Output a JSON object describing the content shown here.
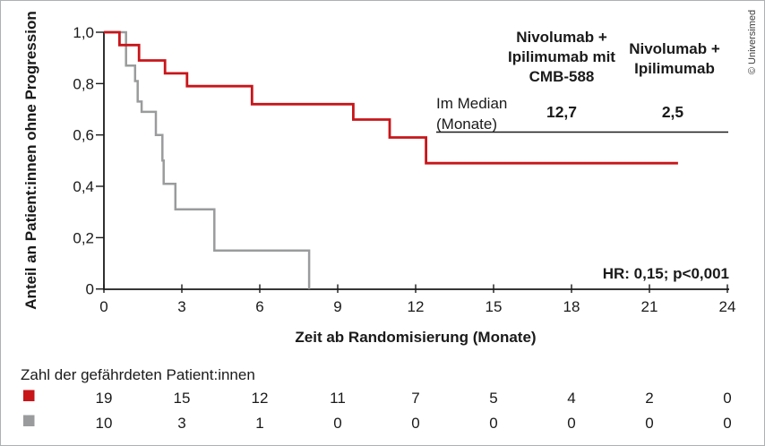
{
  "frame": {
    "copyright": "© Universimed"
  },
  "chart_data": {
    "type": "line",
    "subtype": "kaplan-meier-step",
    "title": "",
    "xlabel": "Zeit ab Randomisierung (Monate)",
    "ylabel": "Anteil an Patient:innen ohne Progression",
    "xlim": [
      0,
      24
    ],
    "ylim": [
      0,
      1.0
    ],
    "grid": false,
    "xticks": [
      0,
      3,
      6,
      9,
      12,
      15,
      18,
      21,
      24
    ],
    "ytick_values": [
      0,
      0.2,
      0.4,
      0.6,
      0.8,
      1.0
    ],
    "ytick_labels": [
      "0",
      "0,2",
      "0,4",
      "0,6",
      "0,8",
      "1,0"
    ],
    "median_header_lines": [
      "Im Median",
      "(Monate)"
    ],
    "hr_annotation": "HR: 0,15; p<0,001",
    "series": [
      {
        "name": "Nivolumab + Ipilimumab mit CMB-588",
        "label_lines": [
          "Nivolumab +",
          "Ipilimumab mit",
          "CMB-588"
        ],
        "color": "#c8151a",
        "median_label": "12,7",
        "step_x": [
          0,
          0.6,
          1.35,
          2.35,
          3.2,
          5.7,
          9.6,
          11.0,
          12.4,
          22.1
        ],
        "step_y": [
          1.0,
          0.95,
          0.89,
          0.84,
          0.79,
          0.72,
          0.66,
          0.59,
          0.49,
          0.49
        ]
      },
      {
        "name": "Nivolumab + Ipilimumab",
        "label_lines": [
          "Nivolumab +",
          "Ipilimumab"
        ],
        "color": "#9a9b9c",
        "median_label": "2,5",
        "step_x": [
          0,
          0.85,
          1.2,
          1.3,
          1.45,
          2.0,
          2.25,
          2.3,
          2.75,
          4.25,
          7.9
        ],
        "step_y": [
          1.0,
          0.87,
          0.81,
          0.73,
          0.69,
          0.6,
          0.5,
          0.41,
          0.31,
          0.15,
          0.0
        ]
      }
    ],
    "risk_table": {
      "title": "Zahl der gefährdeten Patient:innen",
      "rows": [
        {
          "series": "Nivolumab + Ipilimumab mit CMB-588",
          "color": "#c8151a",
          "counts": [
            19,
            15,
            12,
            11,
            7,
            5,
            4,
            2,
            0
          ]
        },
        {
          "series": "Nivolumab + Ipilimumab",
          "color": "#9a9b9c",
          "counts": [
            10,
            3,
            1,
            0,
            0,
            0,
            0,
            0,
            0
          ]
        }
      ]
    }
  }
}
